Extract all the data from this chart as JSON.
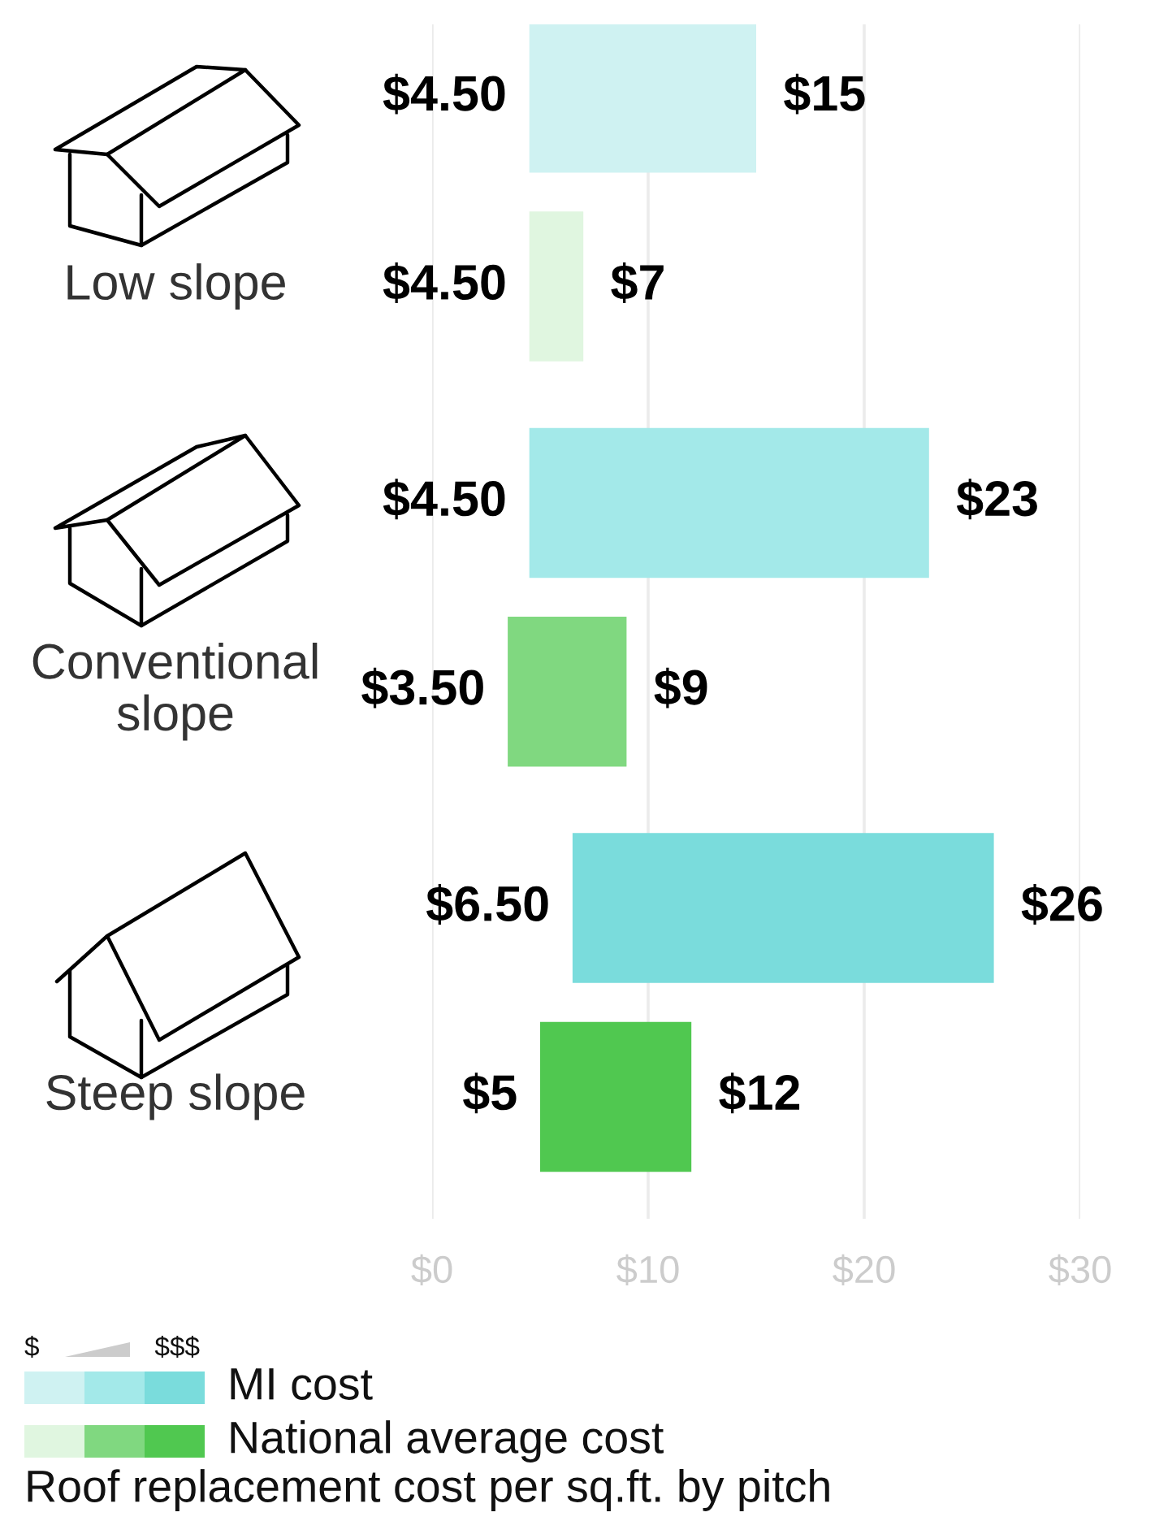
{
  "chart_data": {
    "type": "bar",
    "orientation": "horizontal",
    "title": "Roof replacement cost per sq.ft. by pitch",
    "categories": [
      "Low slope",
      "Conventional slope",
      "Steep slope"
    ],
    "series": [
      {
        "name": "MI cost",
        "colors": [
          "#cff2f2",
          "#a3e9e9",
          "#7adcdc"
        ],
        "base": [
          4.5,
          4.5,
          6.5
        ],
        "values": [
          10.5,
          18.5,
          19.5
        ]
      },
      {
        "name": "National average cost",
        "colors": [
          "#e0f6e0",
          "#80d880",
          "#50c850"
        ],
        "base": [
          4.5,
          3.5,
          5
        ],
        "values": [
          2.5,
          5.5,
          7
        ]
      }
    ],
    "xlim": [
      0,
      30
    ],
    "xticks": [
      {
        "value": 0,
        "label": "$0"
      },
      {
        "value": 10,
        "label": "$10"
      },
      {
        "value": 20,
        "label": "$20"
      },
      {
        "value": 30,
        "label": "$30"
      }
    ],
    "grid": "x",
    "legend": "bottom left",
    "annotations": [
      "$4.50",
      "$15",
      "$4.50",
      "$7",
      "$4.50",
      "$23",
      "$3.50",
      "$9",
      "$6.50",
      "$26",
      "$5",
      "$12",
      "$",
      "$$$"
    ]
  }
}
